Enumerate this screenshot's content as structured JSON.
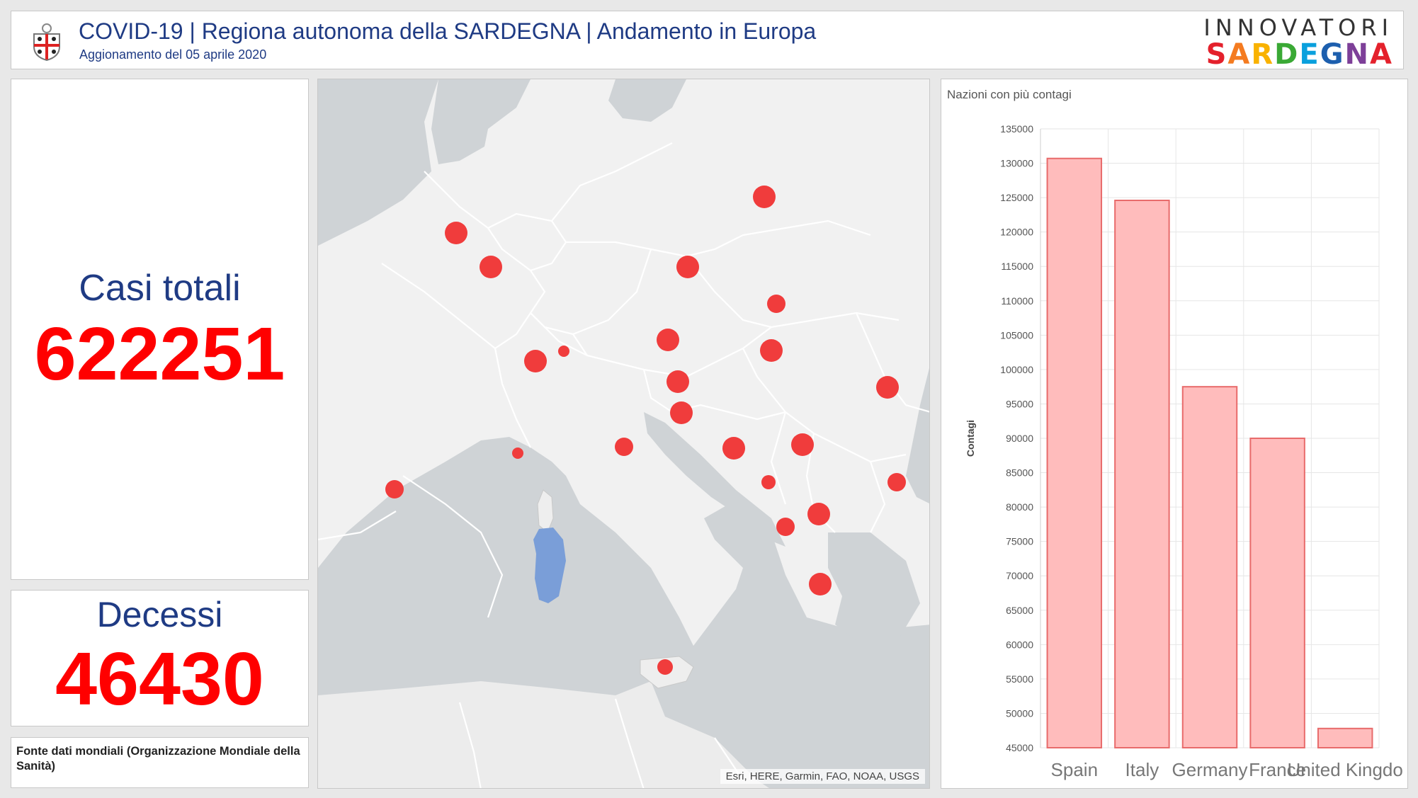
{
  "header": {
    "title": "COVID-19 | Regiona autonoma della SARDEGNA | Andamento in Europa",
    "subtitle": "Aggionamento del 05 aprile 2020",
    "brand_top": "INNOVATORI",
    "brand_bottom": "SARDEGNA",
    "logo_icon": "sardinia-coat-of-arms-icon"
  },
  "totals": {
    "cases_label": "Casi totali",
    "cases_value": "622251",
    "deaths_label": "Decessi",
    "deaths_value": "46430"
  },
  "source": {
    "text": "Fonte dati mondiali (Organizzazione Mondiale della Sanità)"
  },
  "map": {
    "attribution": "Esri, HERE, Garmin, FAO, NOAA, USGS",
    "marker_color": "#f03c3c",
    "highlight_color": "#7a9ed8"
  },
  "colors": {
    "accent_blue": "#1f3b84",
    "value_red": "#ff0000",
    "bar_fill": "#ffbcbc",
    "bar_stroke": "#e86b6b"
  },
  "chart_data": {
    "type": "bar",
    "title": "Nazioni con più contagi",
    "ylabel": "Contagi",
    "xlabel": "",
    "categories": [
      "Spain",
      "Italy",
      "Germany",
      "France",
      "United Kingdo"
    ],
    "values": [
      130700,
      124600,
      97500,
      90000,
      47800
    ],
    "ylim": [
      45000,
      135000
    ],
    "yticks": [
      45000,
      50000,
      55000,
      60000,
      65000,
      70000,
      75000,
      80000,
      85000,
      90000,
      95000,
      100000,
      105000,
      110000,
      115000,
      120000,
      125000,
      130000,
      135000
    ],
    "grid": true
  }
}
